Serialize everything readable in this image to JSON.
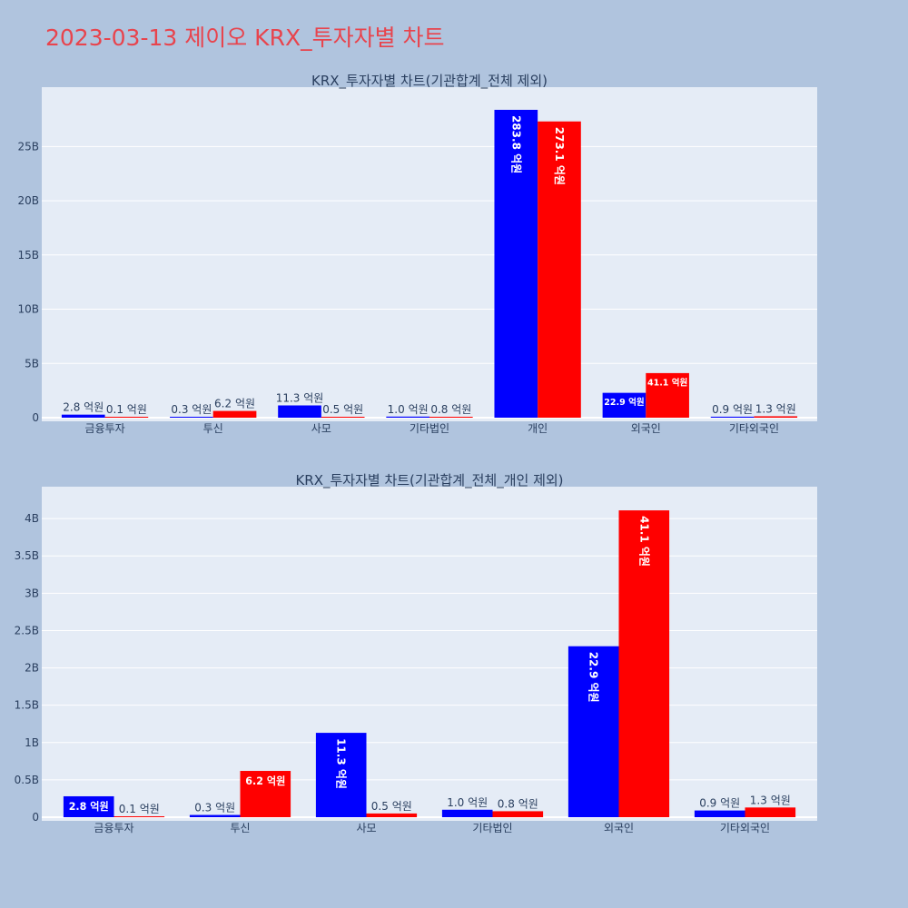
{
  "page": {
    "title": "2023-03-13 제이오 KRX_투자자별 차트"
  },
  "chart_data": [
    {
      "type": "bar",
      "title": "KRX_투자자별 차트(기관합계_전체 제외)",
      "categories": [
        "금융투자",
        "투신",
        "사모",
        "기타법인",
        "개인",
        "외국인",
        "기타외국인"
      ],
      "series": [
        {
          "color": "#0000ff",
          "values": [
            280000000,
            30000000,
            1130000000,
            100000000,
            28380000000,
            2290000000,
            90000000
          ],
          "labels": [
            "2.8 억원",
            "0.3 억원",
            "11.3 억원",
            "1.0 억원",
            "283.8 억원",
            "22.9 억원",
            "0.9 억원"
          ]
        },
        {
          "color": "#ff0000",
          "values": [
            10000000,
            620000000,
            50000000,
            80000000,
            27310000000,
            4110000000,
            130000000
          ],
          "labels": [
            "0.1 억원",
            "6.2 억원",
            "0.5 억원",
            "0.8 억원",
            "273.1 억원",
            "41.1 억원",
            "1.3 억원"
          ]
        }
      ],
      "yticks": [
        0,
        5000000000,
        10000000000,
        15000000000,
        20000000000,
        25000000000
      ],
      "ytick_labels": [
        "0",
        "5B",
        "10B",
        "15B",
        "20B",
        "25B"
      ],
      "ylim": [
        0,
        29800000000
      ],
      "grid": true,
      "legend": "none"
    },
    {
      "type": "bar",
      "title": "KRX_투자자별 차트(기관합계_전체_개인 제외)",
      "categories": [
        "금융투자",
        "투신",
        "사모",
        "기타법인",
        "외국인",
        "기타외국인"
      ],
      "series": [
        {
          "color": "#0000ff",
          "values": [
            280000000,
            30000000,
            1130000000,
            100000000,
            2290000000,
            90000000
          ],
          "labels": [
            "2.8 억원",
            "0.3 억원",
            "11.3 억원",
            "1.0 억원",
            "22.9 억원",
            "0.9 억원"
          ]
        },
        {
          "color": "#ff0000",
          "values": [
            10000000,
            620000000,
            50000000,
            80000000,
            4110000000,
            130000000
          ],
          "labels": [
            "0.1 억원",
            "6.2 억원",
            "0.5 억원",
            "0.8 억원",
            "41.1 억원",
            "1.3 억원"
          ]
        }
      ],
      "yticks": [
        0,
        500000000,
        1000000000,
        1500000000,
        2000000000,
        2500000000,
        3000000000,
        3500000000,
        4000000000
      ],
      "ytick_labels": [
        "0",
        "0.5B",
        "1B",
        "1.5B",
        "2B",
        "2.5B",
        "3B",
        "3.5B",
        "4B"
      ],
      "ylim": [
        0,
        4330000000
      ],
      "grid": true,
      "legend": "none"
    }
  ]
}
